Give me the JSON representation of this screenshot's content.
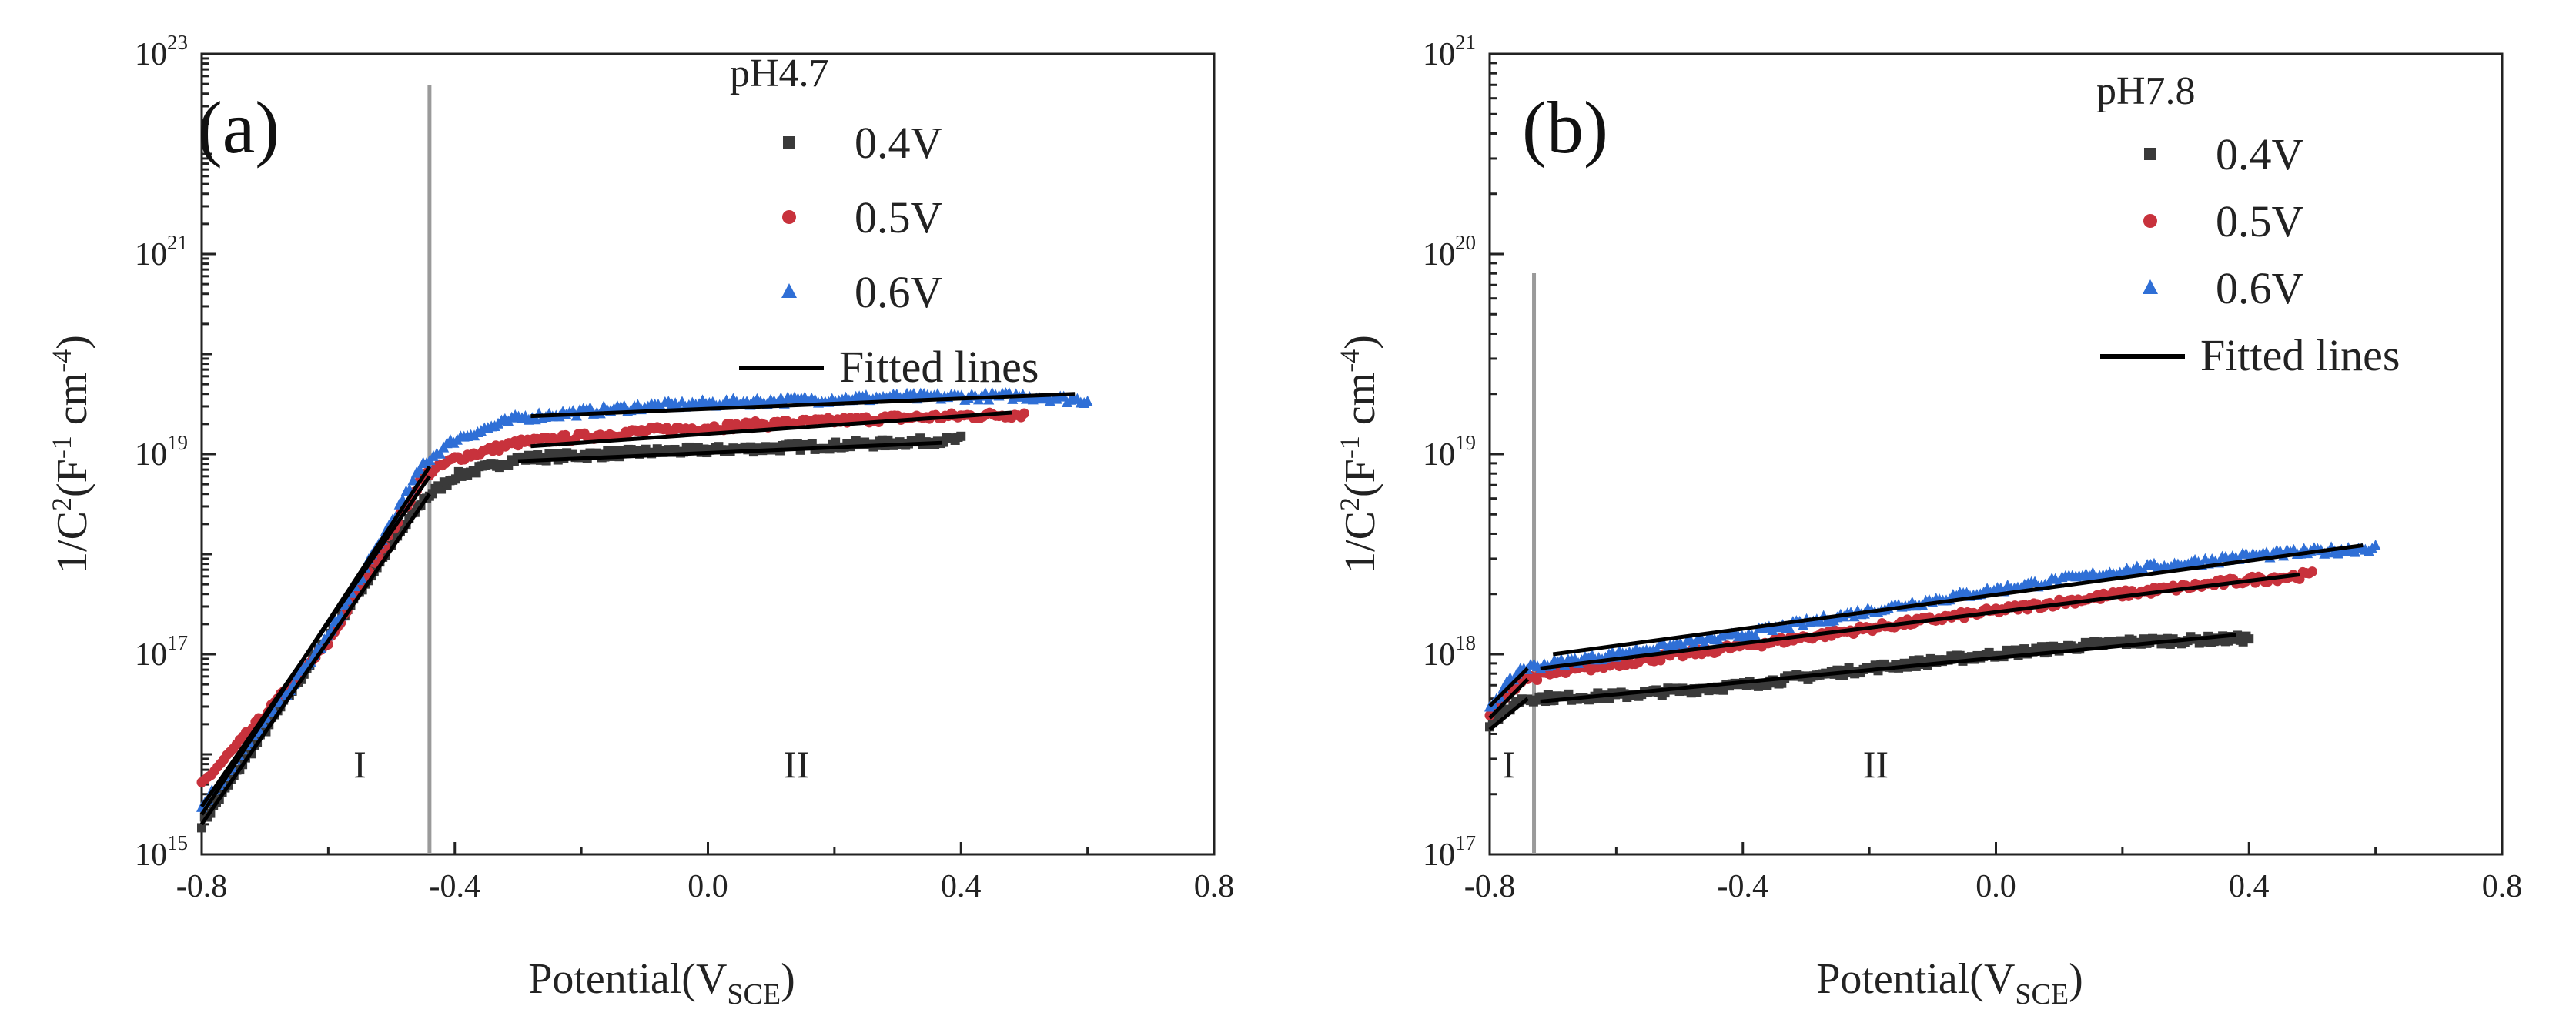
{
  "figure": {
    "panel_a_label": "(a)",
    "panel_b_label": "(b)"
  },
  "chart_data": [
    {
      "type": "scatter",
      "panel": "(a)",
      "legend_title": "pH4.7",
      "xlabel": "Potential(VSCE)",
      "xlabel_main": "Potential(V",
      "xlabel_sub": "SCE",
      "xlabel_close": ")",
      "ylabel": "1/C2(F-1 cm-4)",
      "xlim": [
        -0.8,
        0.8
      ],
      "ylim": [
        1000000000000000.0,
        1e+23
      ],
      "yscale": "log",
      "x_ticks": [
        "-0.8",
        "-0.4",
        "0.0",
        "0.4",
        "0.8"
      ],
      "x_tick_values": [
        -0.8,
        -0.4,
        0.0,
        0.4,
        0.8
      ],
      "y_ticks": [
        15,
        17,
        19,
        21,
        23
      ],
      "y_tick_base": "10",
      "y_tick_exps": [
        "15",
        "17",
        "19",
        "21",
        "23"
      ],
      "grid": false,
      "legend_position": "top-right",
      "divider_x": -0.44,
      "region_labels": [
        {
          "text": "I",
          "x": -0.55
        },
        {
          "text": "II",
          "x": 0.14
        }
      ],
      "series": [
        {
          "name": "0.4V",
          "marker": "square",
          "color": "#3a3a3a",
          "x_range": [
            -0.8,
            0.4
          ],
          "points": [
            [
              -0.8,
              2000000000000000.0
            ],
            [
              -0.6,
              1.5e+17
            ],
            [
              -0.45,
              3.5e+18
            ],
            [
              -0.4,
              6e+18
            ],
            [
              -0.3,
              9e+18
            ],
            [
              -0.1,
              1.05e+19
            ],
            [
              0.1,
              1.15e+19
            ],
            [
              0.3,
              1.3e+19
            ],
            [
              0.4,
              1.4e+19
            ]
          ],
          "fit": [
            [
              [
                -0.8,
                2000000000000000.0
              ],
              [
                -0.44,
                4e+18
              ]
            ],
            [
              [
                -0.3,
                8.5e+18
              ],
              [
                0.37,
                1.3e+19
              ]
            ]
          ]
        },
        {
          "name": "0.5V",
          "marker": "circle",
          "color": "#c8323c",
          "x_range": [
            -0.8,
            0.5
          ],
          "points": [
            [
              -0.8,
              5000000000000000.0
            ],
            [
              -0.7,
              2.5e+16
            ],
            [
              -0.6,
              1.3e+17
            ],
            [
              -0.45,
              6e+18
            ],
            [
              -0.4,
              9e+18
            ],
            [
              -0.3,
              1.3e+19
            ],
            [
              -0.1,
              1.7e+19
            ],
            [
              0.1,
              2e+19
            ],
            [
              0.3,
              2.3e+19
            ],
            [
              0.5,
              2.5e+19
            ]
          ],
          "fit": [
            [
              [
                -0.8,
                3000000000000000.0
              ],
              [
                -0.44,
                6e+18
              ]
            ],
            [
              [
                -0.28,
                1.2e+19
              ],
              [
                0.48,
                2.6e+19
              ]
            ]
          ]
        },
        {
          "name": "0.6V",
          "marker": "triangle",
          "color": "#2f6fd6",
          "x_range": [
            -0.8,
            0.6
          ],
          "points": [
            [
              -0.8,
              3000000000000000.0
            ],
            [
              -0.6,
              1.5e+17
            ],
            [
              -0.45,
              8e+18
            ],
            [
              -0.4,
              1.4e+19
            ],
            [
              -0.3,
              2.3e+19
            ],
            [
              -0.1,
              3e+19
            ],
            [
              0.1,
              3.4e+19
            ],
            [
              0.3,
              3.7e+19
            ],
            [
              0.5,
              3.8e+19
            ],
            [
              0.6,
              3.4e+19
            ]
          ],
          "fit": [
            [
              [
                -0.8,
                2500000000000000.0
              ],
              [
                -0.44,
                7.5e+18
              ]
            ],
            [
              [
                -0.28,
                2.4e+19
              ],
              [
                0.58,
                4e+19
              ]
            ]
          ]
        },
        {
          "name": "Fitted lines",
          "marker": "line",
          "color": "#000000"
        }
      ]
    },
    {
      "type": "scatter",
      "panel": "(b)",
      "legend_title": "pH7.8",
      "xlabel": "Potential(VSCE)",
      "xlabel_main": "Potential(V",
      "xlabel_sub": "SCE",
      "xlabel_close": ")",
      "ylabel": "1/C2(F-1 cm-4)",
      "xlim": [
        -0.8,
        0.8
      ],
      "ylim": [
        1e+17,
        1e+21
      ],
      "yscale": "log",
      "x_ticks": [
        "-0.8",
        "-0.4",
        "0.0",
        "0.4",
        "0.8"
      ],
      "x_tick_values": [
        -0.8,
        -0.4,
        0.0,
        0.4,
        0.8
      ],
      "y_ticks": [
        17,
        18,
        19,
        20,
        21
      ],
      "y_tick_base": "10",
      "y_tick_exps": [
        "17",
        "18",
        "19",
        "20",
        "21"
      ],
      "grid": false,
      "legend_position": "top-right",
      "divider_x": -0.73,
      "region_labels": [
        {
          "text": "I",
          "x": -0.77
        },
        {
          "text": "II",
          "x": -0.19
        }
      ],
      "series": [
        {
          "name": "0.4V",
          "marker": "square",
          "color": "#3a3a3a",
          "x_range": [
            -0.8,
            0.4
          ],
          "points": [
            [
              -0.8,
              4.5e+17
            ],
            [
              -0.75,
              6e+17
            ],
            [
              -0.6,
              6.2e+17
            ],
            [
              -0.4,
              7e+17
            ],
            [
              -0.2,
              8.5e+17
            ],
            [
              0.0,
              1e+18
            ],
            [
              0.2,
              1.15e+18
            ],
            [
              0.4,
              1.2e+18
            ]
          ],
          "fit": [
            [
              [
                -0.8,
                4.2e+17
              ],
              [
                -0.74,
                6e+17
              ]
            ],
            [
              [
                -0.72,
                5.8e+17
              ],
              [
                0.38,
                1.25e+18
              ]
            ]
          ]
        },
        {
          "name": "0.5V",
          "marker": "circle",
          "color": "#c8323c",
          "x_range": [
            -0.8,
            0.5
          ],
          "points": [
            [
              -0.8,
              5e+17
            ],
            [
              -0.75,
              7.5e+17
            ],
            [
              -0.6,
              9e+17
            ],
            [
              -0.4,
              1.1e+18
            ],
            [
              -0.2,
              1.35e+18
            ],
            [
              0.0,
              1.65e+18
            ],
            [
              0.2,
              2e+18
            ],
            [
              0.4,
              2.35e+18
            ],
            [
              0.5,
              2.5e+18
            ]
          ],
          "fit": [
            [
              [
                -0.8,
                4.8e+17
              ],
              [
                -0.74,
                7.5e+17
              ]
            ],
            [
              [
                -0.72,
                8.5e+17
              ],
              [
                0.48,
                2.5e+18
              ]
            ]
          ]
        },
        {
          "name": "0.6V",
          "marker": "triangle",
          "color": "#2f6fd6",
          "x_range": [
            -0.8,
            0.6
          ],
          "points": [
            [
              -0.8,
              5.5e+17
            ],
            [
              -0.75,
              8.5e+17
            ],
            [
              -0.6,
              1e+18
            ],
            [
              -0.4,
              1.25e+18
            ],
            [
              -0.2,
              1.65e+18
            ],
            [
              0.0,
              2.1e+18
            ],
            [
              0.2,
              2.6e+18
            ],
            [
              0.4,
              3.1e+18
            ],
            [
              0.6,
              3.4e+18
            ]
          ],
          "fit": [
            [
              [
                -0.8,
                5.5e+17
              ],
              [
                -0.74,
                8.5e+17
              ]
            ],
            [
              [
                -0.7,
                1e+18
              ],
              [
                0.58,
                3.5e+18
              ]
            ]
          ]
        },
        {
          "name": "Fitted lines",
          "marker": "line",
          "color": "#000000"
        }
      ]
    }
  ]
}
